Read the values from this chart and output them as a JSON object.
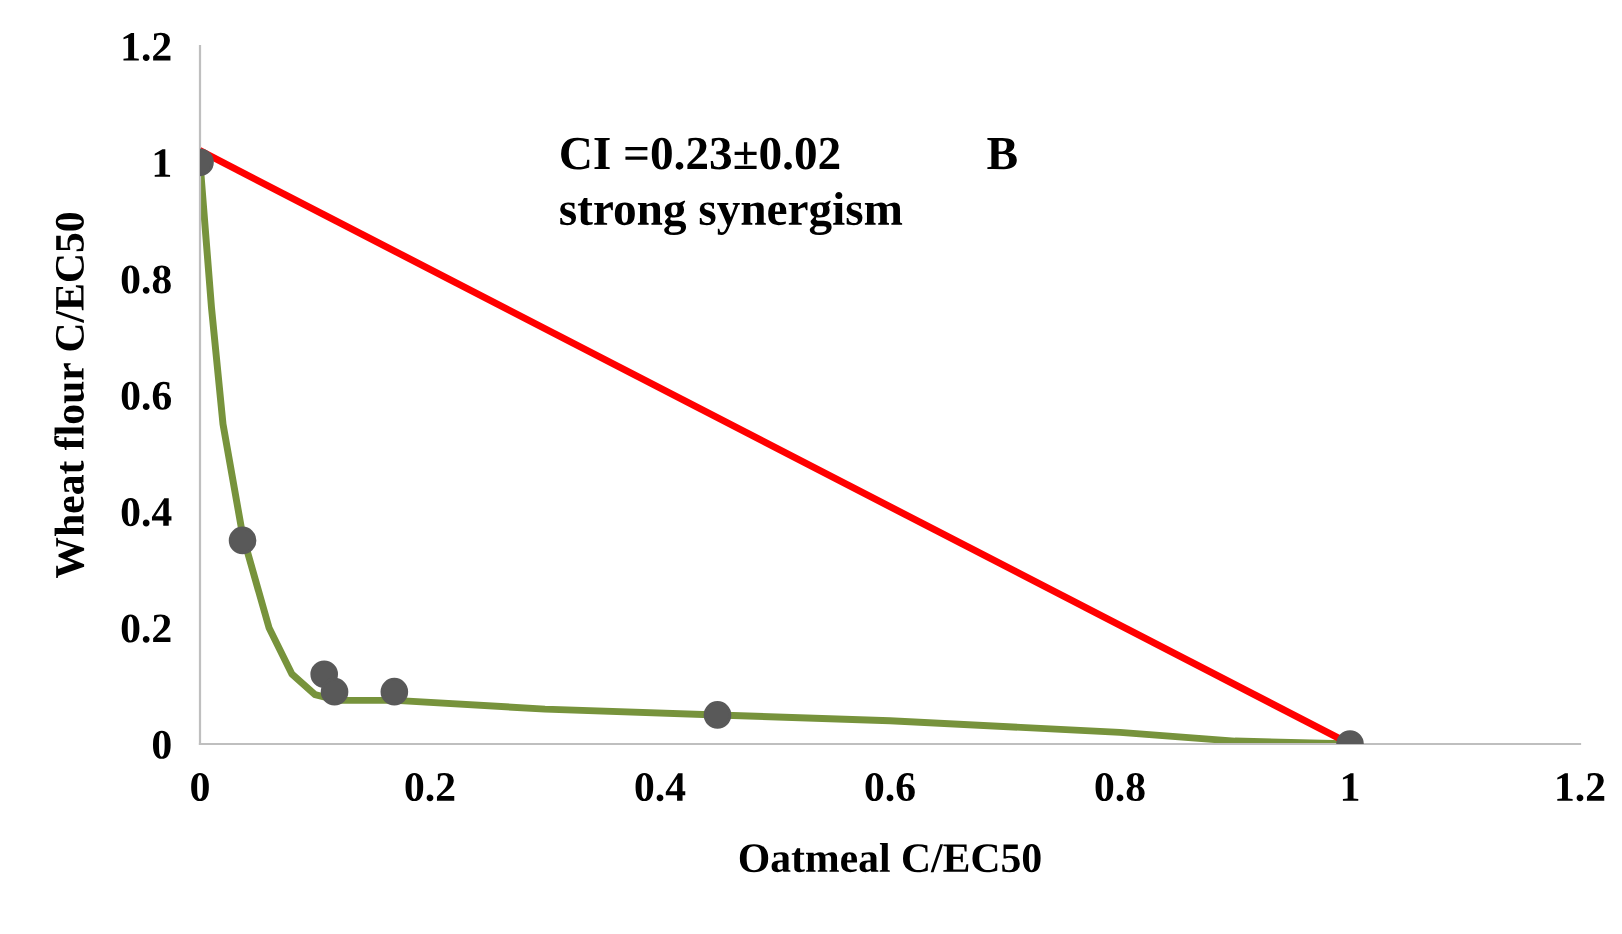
{
  "chart_data": {
    "type": "scatter",
    "xlabel": "Oatmeal C/EC50",
    "ylabel": "Wheat flour C/EC50",
    "x": [
      0,
      0.037,
      0.108,
      0.117,
      0.169,
      0.45,
      1.0
    ],
    "series": [
      {
        "color": "#595959",
        "marker": "circle",
        "values": [
          1.0,
          0.35,
          0.12,
          0.09,
          0.09,
          0.05,
          0.0
        ]
      },
      {
        "type": "line",
        "color": "#77933c",
        "marker": "none",
        "x": [
          0,
          0.01,
          0.02,
          0.037,
          0.06,
          0.08,
          0.1,
          0.12,
          0.17,
          0.3,
          0.45,
          0.6,
          0.8,
          0.9,
          1.0
        ],
        "values": [
          1.0,
          0.75,
          0.55,
          0.36,
          0.2,
          0.12,
          0.085,
          0.075,
          0.075,
          0.06,
          0.05,
          0.04,
          0.02,
          0.005,
          0.0
        ]
      },
      {
        "type": "line",
        "color": "#ff0000",
        "marker": "none",
        "x": [
          0,
          1.0
        ],
        "values": [
          1.02,
          0.0
        ]
      }
    ],
    "annotations": [
      {
        "text": "CI =0.23±0.02"
      },
      {
        "text": "B"
      },
      {
        "text": "strong synergism"
      }
    ],
    "xlim": [
      0,
      1.2
    ],
    "xticks": [
      0,
      0.2,
      0.4,
      0.6,
      0.8,
      1,
      1.2
    ],
    "ylim": [
      0,
      1.2
    ],
    "yticks": [
      0,
      0.2,
      0.4,
      0.6,
      0.8,
      1,
      1.2
    ],
    "grid": false,
    "legend": false
  }
}
